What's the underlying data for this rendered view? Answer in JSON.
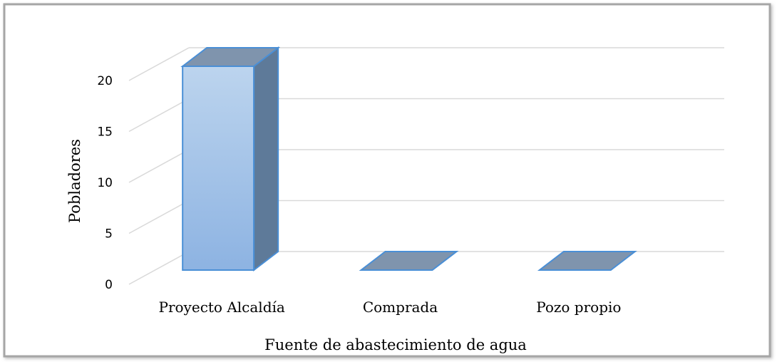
{
  "chart_data": {
    "type": "bar",
    "style": "3d-column",
    "categories": [
      "Proyecto Alcaldía",
      "Comprada",
      "Pozo propio"
    ],
    "series": [
      {
        "values": [
          20,
          0,
          0
        ]
      }
    ],
    "title": "",
    "xlabel": "Fuente de abastecimiento de agua",
    "ylabel": "Pobladores",
    "ylim": [
      0,
      20
    ],
    "yticks": [
      0,
      5,
      10,
      15,
      20
    ],
    "grid": true,
    "legend": "none",
    "colors": {
      "bar_front_top": "#bcd4ee",
      "bar_front_bottom": "#8db3e2",
      "bar_side": "#5e7a99",
      "bar_top": "#7f94ad",
      "bar_edge": "#4a8fd6",
      "gridline": "#d9d9d9",
      "frame_border": "#a6a6a6"
    }
  }
}
